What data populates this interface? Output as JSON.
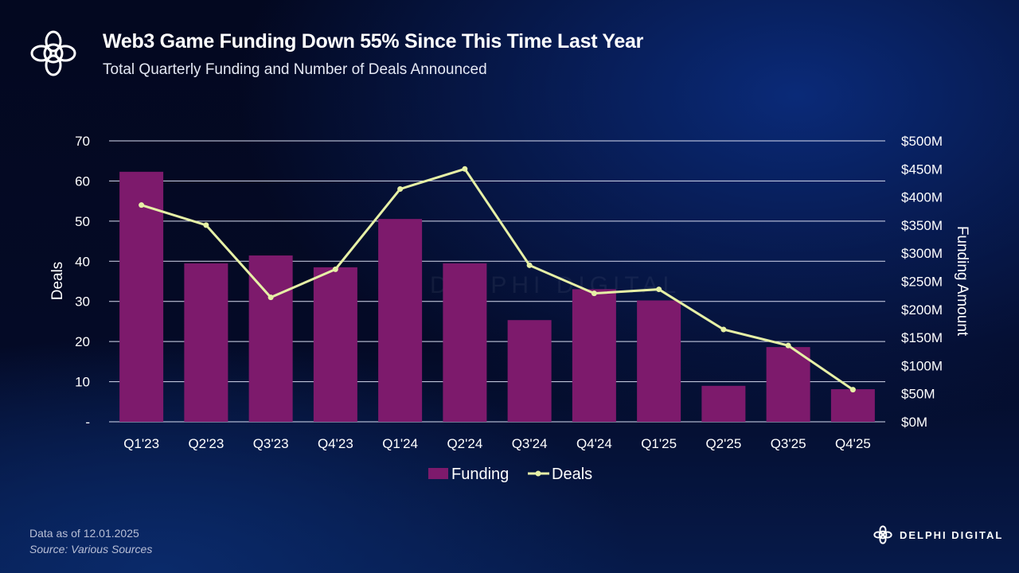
{
  "header": {
    "title": "Web3 Game Funding Down 55% Since This Time Last Year",
    "subtitle": "Total Quarterly Funding and Number of Deals Announced"
  },
  "footer": {
    "data_as_of": "Data as of 12.01.2025",
    "source": "Source: Various Sources",
    "brand": "DELPHI DIGITAL"
  },
  "watermark": "DELPHI DIGITAL",
  "colors": {
    "funding": "#7d1a6c",
    "deals": "#e6f0a6",
    "grid": "#d8dcf0"
  },
  "chart_data": {
    "type": "bar",
    "categories": [
      "Q1'23",
      "Q2'23",
      "Q3'23",
      "Q4'23",
      "Q1'24",
      "Q2'24",
      "Q3'24",
      "Q4'24",
      "Q1'25",
      "Q2'25",
      "Q3'25",
      "Q4'25"
    ],
    "series": [
      {
        "name": "Funding",
        "type": "bar",
        "axis": "right",
        "unit": "$M",
        "values": [
          445,
          282,
          296,
          275,
          361,
          282,
          181,
          236,
          216,
          64,
          133,
          58
        ]
      },
      {
        "name": "Deals",
        "type": "line",
        "axis": "left",
        "values": [
          54,
          49,
          31,
          38,
          58,
          63,
          39,
          32,
          33,
          23,
          19,
          8
        ]
      }
    ],
    "ylabel_left": "Deals",
    "ylabel_right": "Funding Amount",
    "ylim_left": [
      0,
      70
    ],
    "ylim_right": [
      0,
      500
    ],
    "yticks_left": [
      "-",
      "10",
      "20",
      "30",
      "40",
      "50",
      "60",
      "70"
    ],
    "yticks_right": [
      "$0M",
      "$50M",
      "$100M",
      "$150M",
      "$200M",
      "$250M",
      "$300M",
      "$350M",
      "$400M",
      "$450M",
      "$500M"
    ],
    "grid": true,
    "legend": "bottom-center"
  }
}
